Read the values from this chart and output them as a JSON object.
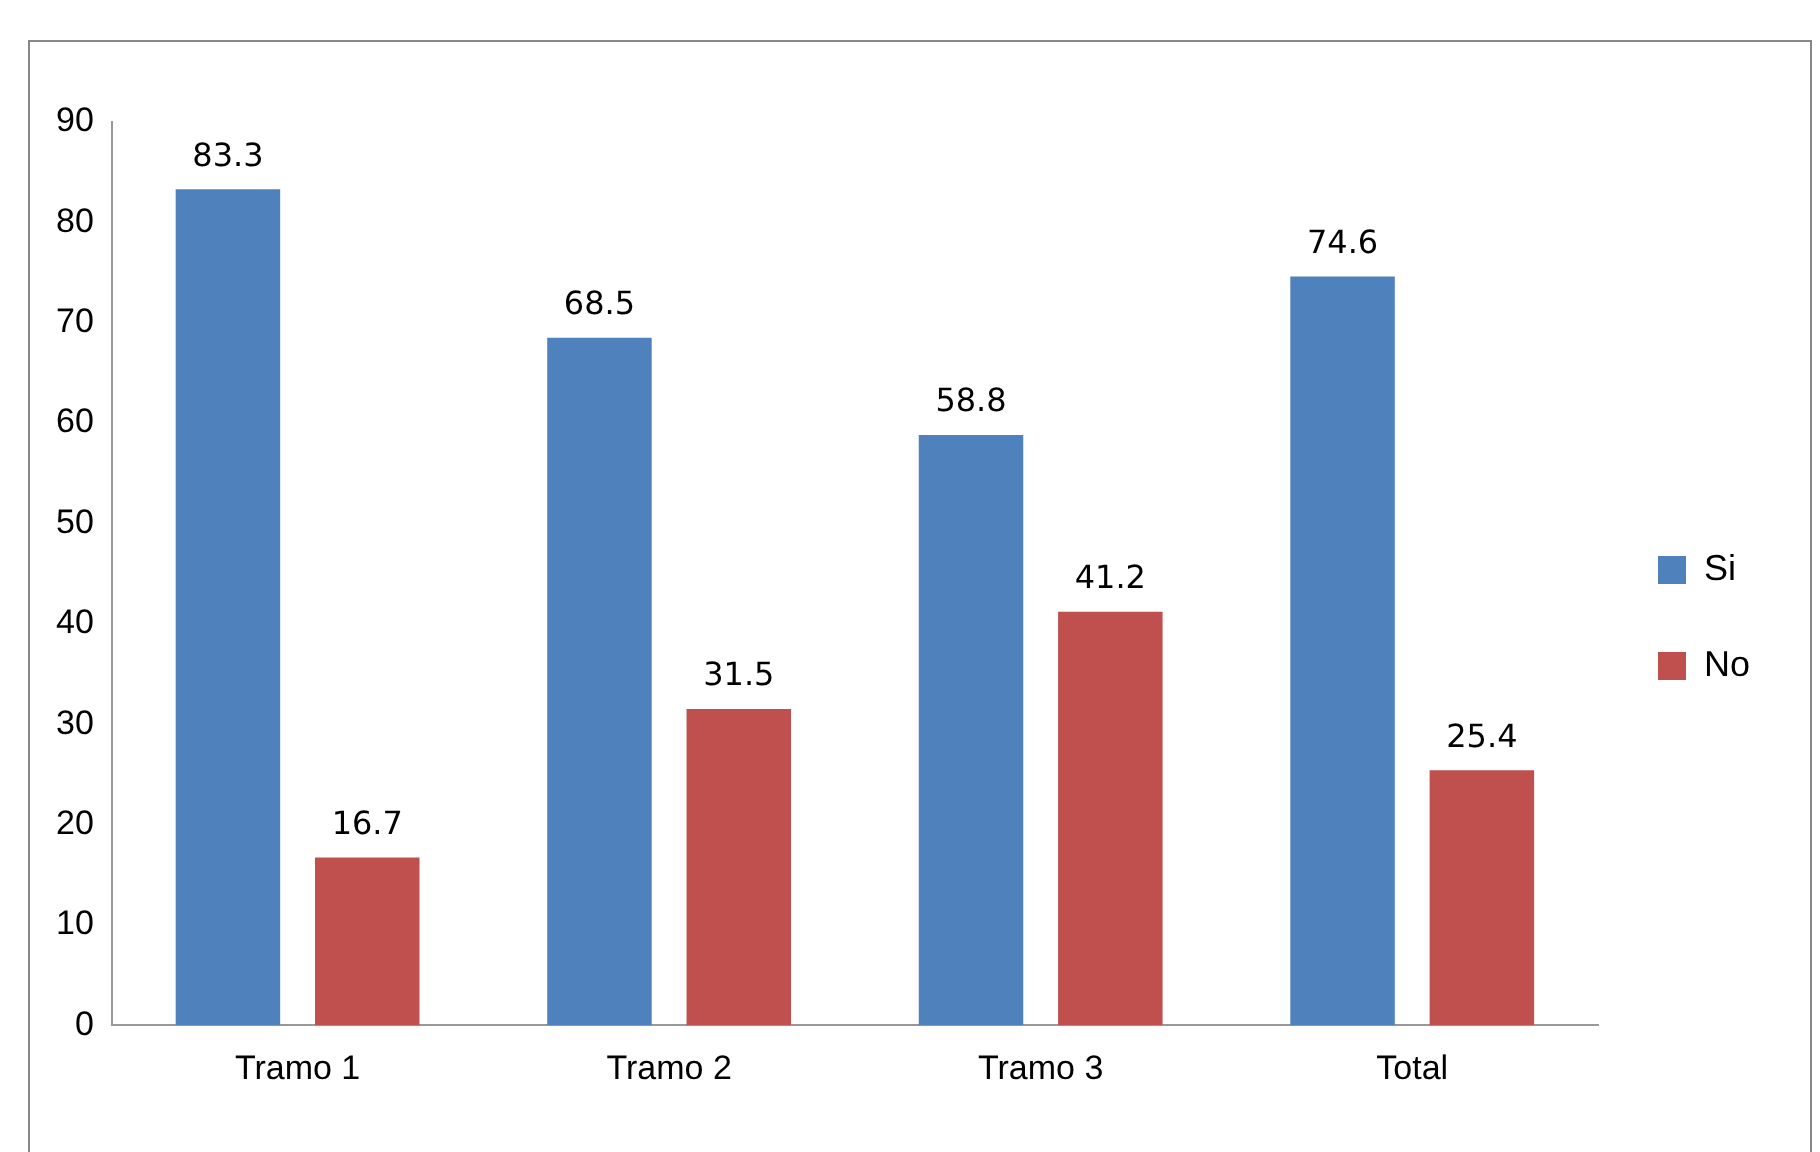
{
  "chart_data": {
    "type": "bar",
    "categories": [
      "Tramo 1",
      "Tramo 2",
      "Tramo 3",
      "Total"
    ],
    "series": [
      {
        "name": "Si",
        "color": "#4f81bd",
        "values": [
          83.3,
          68.5,
          58.8,
          74.6
        ]
      },
      {
        "name": "No",
        "color": "#c0504d",
        "values": [
          16.7,
          31.5,
          41.2,
          25.4
        ]
      }
    ],
    "ylim": [
      0,
      90
    ],
    "yticks": [
      0,
      10,
      20,
      30,
      40,
      50,
      60,
      70,
      80,
      90
    ],
    "grid": false,
    "legend": "right",
    "data_labels": true
  }
}
